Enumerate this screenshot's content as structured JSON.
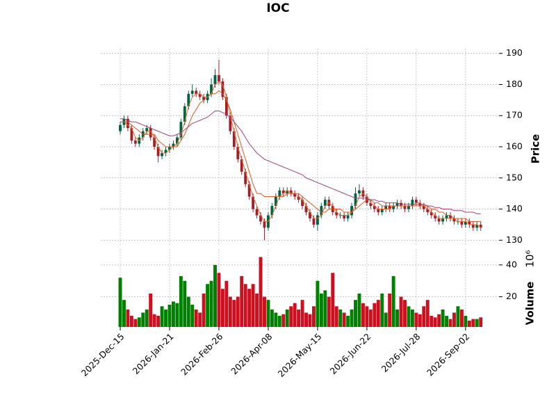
{
  "chart_data": {
    "type": "candlestick",
    "title": "IOC",
    "ylabel": "Price",
    "volume_label": "Volume",
    "volume_unit": "10⁶",
    "up_color": "#006340",
    "down_color": "#a02128",
    "volume_up_color": "#008000",
    "volume_down_color": "#cc1020",
    "grid": true,
    "categories": [
      "2025-Dec-15",
      null,
      null,
      null,
      null,
      null,
      null,
      null,
      null,
      null,
      null,
      null,
      null,
      "2026-Jan-21",
      null,
      null,
      null,
      null,
      null,
      null,
      null,
      null,
      null,
      null,
      null,
      null,
      "2026-Feb-26",
      null,
      null,
      null,
      null,
      null,
      null,
      null,
      null,
      null,
      null,
      null,
      null,
      "2026-Apr-08",
      null,
      null,
      null,
      null,
      null,
      null,
      null,
      null,
      null,
      null,
      null,
      null,
      "2026-May-15",
      null,
      null,
      null,
      null,
      null,
      null,
      null,
      null,
      null,
      null,
      null,
      null,
      "2026-Jun-22",
      null,
      null,
      null,
      null,
      null,
      null,
      null,
      null,
      null,
      null,
      null,
      null,
      "2026-Jul-28",
      null,
      null,
      null,
      null,
      null,
      null,
      null,
      null,
      null,
      null,
      null,
      null,
      "2026-Sep-02",
      null,
      null,
      null,
      null
    ],
    "open": [
      165,
      167,
      169,
      166,
      162,
      161,
      163,
      165,
      166,
      163,
      160,
      157,
      158,
      159,
      160,
      161,
      163,
      168,
      173,
      177,
      178,
      177,
      176,
      175,
      177,
      180,
      183,
      181,
      176,
      170,
      165,
      160,
      156,
      152,
      148,
      144,
      140,
      138,
      136,
      134,
      138,
      141,
      144,
      146,
      145,
      146,
      145,
      144,
      143,
      141,
      139,
      137,
      135,
      138,
      141,
      143,
      141,
      139,
      138,
      138,
      137,
      138,
      141,
      145,
      146,
      144,
      142,
      141,
      140,
      139,
      140,
      141,
      140,
      141,
      142,
      141,
      140,
      141,
      143,
      142,
      141,
      140,
      139,
      138,
      137,
      136,
      137,
      138,
      137,
      136,
      136,
      135,
      136,
      135,
      134,
      135
    ],
    "high": [
      168,
      170,
      170,
      167,
      163,
      164,
      166,
      167,
      167,
      164,
      161,
      159,
      160,
      161,
      162,
      164,
      169,
      174,
      178,
      180,
      179,
      178,
      177,
      178,
      182,
      185,
      188,
      182,
      177,
      171,
      166,
      161,
      157,
      153,
      149,
      145,
      141,
      139,
      137,
      139,
      142,
      145,
      147,
      147,
      147,
      147,
      146,
      145,
      144,
      142,
      140,
      138,
      139,
      142,
      144,
      144,
      142,
      140,
      139,
      139,
      139,
      142,
      147,
      148,
      147,
      145,
      143,
      142,
      141,
      141,
      142,
      142,
      142,
      143,
      143,
      142,
      142,
      144,
      144,
      143,
      142,
      141,
      140,
      139,
      138,
      138,
      139,
      139,
      138,
      137,
      137,
      137,
      137,
      136,
      136,
      136
    ],
    "low": [
      164,
      166,
      165,
      161,
      160,
      160,
      162,
      164,
      162,
      159,
      155,
      156,
      157,
      158,
      159,
      160,
      162,
      167,
      172,
      176,
      176,
      175,
      174,
      174,
      176,
      179,
      180,
      175,
      169,
      164,
      159,
      155,
      151,
      147,
      143,
      139,
      137,
      135,
      130,
      133,
      137,
      140,
      143,
      144,
      144,
      144,
      143,
      142,
      140,
      138,
      136,
      134,
      133,
      137,
      140,
      140,
      138,
      137,
      137,
      136,
      136,
      137,
      140,
      144,
      143,
      141,
      140,
      139,
      138,
      138,
      139,
      139,
      139,
      140,
      140,
      139,
      139,
      140,
      141,
      140,
      139,
      138,
      137,
      136,
      135,
      135,
      136,
      136,
      135,
      135,
      134,
      134,
      134,
      133,
      133,
      133
    ],
    "close": [
      167,
      169,
      166,
      162,
      161,
      163,
      165,
      166,
      163,
      160,
      157,
      158,
      159,
      160,
      161,
      163,
      168,
      173,
      177,
      178,
      177,
      176,
      175,
      177,
      180,
      183,
      181,
      176,
      170,
      165,
      160,
      156,
      152,
      148,
      144,
      140,
      138,
      136,
      134,
      138,
      141,
      144,
      146,
      145,
      146,
      145,
      144,
      143,
      141,
      139,
      137,
      135,
      138,
      141,
      143,
      141,
      139,
      138,
      138,
      137,
      138,
      141,
      145,
      146,
      144,
      142,
      141,
      140,
      139,
      140,
      141,
      140,
      141,
      142,
      141,
      140,
      141,
      143,
      142,
      141,
      140,
      139,
      138,
      137,
      136,
      137,
      138,
      137,
      136,
      136,
      135,
      136,
      135,
      134,
      135,
      134
    ],
    "volume": [
      32,
      18,
      12,
      8,
      6,
      7,
      10,
      12,
      22,
      9,
      8,
      14,
      12,
      15,
      17,
      16,
      33,
      30,
      20,
      15,
      12,
      10,
      22,
      28,
      30,
      40,
      35,
      25,
      30,
      20,
      18,
      20,
      33,
      28,
      25,
      28,
      22,
      45,
      20,
      18,
      12,
      10,
      8,
      9,
      12,
      14,
      16,
      12,
      18,
      10,
      9,
      14,
      30,
      22,
      24,
      20,
      35,
      14,
      12,
      10,
      8,
      12,
      18,
      22,
      16,
      14,
      12,
      16,
      18,
      22,
      10,
      22,
      33,
      12,
      20,
      18,
      14,
      12,
      10,
      9,
      14,
      18,
      8,
      7,
      9,
      12,
      8,
      6,
      10,
      14,
      12,
      8,
      5,
      6,
      6,
      7
    ],
    "moving_averages": [
      {
        "color": "#f0642a",
        "values": [
          168,
          168,
          167,
          166,
          163,
          162,
          163,
          165,
          165,
          163,
          160,
          158,
          158,
          159,
          160,
          161,
          164,
          168,
          173,
          176,
          177,
          177,
          176,
          176,
          177,
          180,
          181,
          180,
          176,
          170,
          165,
          160,
          156,
          152,
          148,
          144,
          141,
          138,
          136,
          136,
          138,
          141,
          144,
          145,
          146,
          145,
          145,
          144,
          143,
          141,
          139,
          137,
          137,
          138,
          141,
          142,
          141,
          139,
          138,
          138,
          138,
          139,
          141,
          144,
          145,
          144,
          142,
          141,
          140,
          140,
          140,
          140,
          141,
          141,
          141,
          141,
          141,
          141,
          142,
          142,
          141,
          140,
          139,
          138,
          137,
          137,
          137,
          137,
          137,
          136,
          136,
          136,
          135,
          135,
          135,
          134
        ]
      },
      {
        "color": "#e0561e",
        "values": [
          168,
          168,
          168,
          167,
          166,
          165,
          164,
          164,
          164,
          164,
          162,
          161,
          160,
          160,
          160,
          160,
          162,
          164,
          167,
          170,
          172,
          174,
          175,
          176,
          177,
          177,
          178,
          177,
          175,
          172,
          168,
          164,
          160,
          156,
          152,
          148,
          145,
          145,
          144,
          144,
          144,
          144,
          144,
          144,
          145,
          145,
          145,
          145,
          144,
          143,
          142,
          141,
          140,
          139,
          139,
          140,
          140,
          140,
          140,
          139,
          139,
          139,
          140,
          141,
          142,
          143,
          143,
          142,
          142,
          141,
          141,
          141,
          141,
          141,
          141,
          141,
          141,
          141,
          141,
          141,
          141,
          141,
          140,
          140,
          139,
          139,
          138,
          138,
          137,
          137,
          137,
          137,
          136,
          136,
          136,
          136
        ]
      },
      {
        "color": "#a0407a",
        "values": [
          169,
          169,
          168.5,
          168,
          168,
          167.5,
          167,
          166.5,
          166,
          165.5,
          165,
          164.5,
          164,
          163.5,
          163.5,
          164,
          164.5,
          165.5,
          166.5,
          167.5,
          168,
          168.5,
          169,
          169.5,
          170.5,
          171.5,
          171.5,
          171,
          170.5,
          169.5,
          168,
          166.5,
          165,
          163,
          161,
          159.5,
          158,
          157,
          156,
          155.5,
          155,
          154.5,
          154,
          153.5,
          153,
          152.5,
          152,
          151.5,
          151,
          150,
          149.5,
          149,
          148.5,
          148,
          147.5,
          147,
          146.5,
          146,
          145.5,
          145,
          144.5,
          144,
          143.5,
          143.5,
          143.5,
          143.5,
          143,
          143,
          142.5,
          142.5,
          142,
          142,
          142,
          142,
          141.5,
          141.5,
          141.5,
          141.5,
          141.5,
          141.5,
          141.5,
          141,
          141,
          140.5,
          140.5,
          140,
          140,
          140,
          139.5,
          139.5,
          139.5,
          139,
          139,
          139,
          138.5,
          138.5
        ]
      }
    ],
    "ylim": [
      128.5,
      191.5
    ],
    "yticks": [
      130,
      140,
      150,
      160,
      170,
      180,
      190
    ],
    "volume_ylim": [
      1,
      50
    ],
    "volume_ticks": [
      20,
      40
    ]
  }
}
